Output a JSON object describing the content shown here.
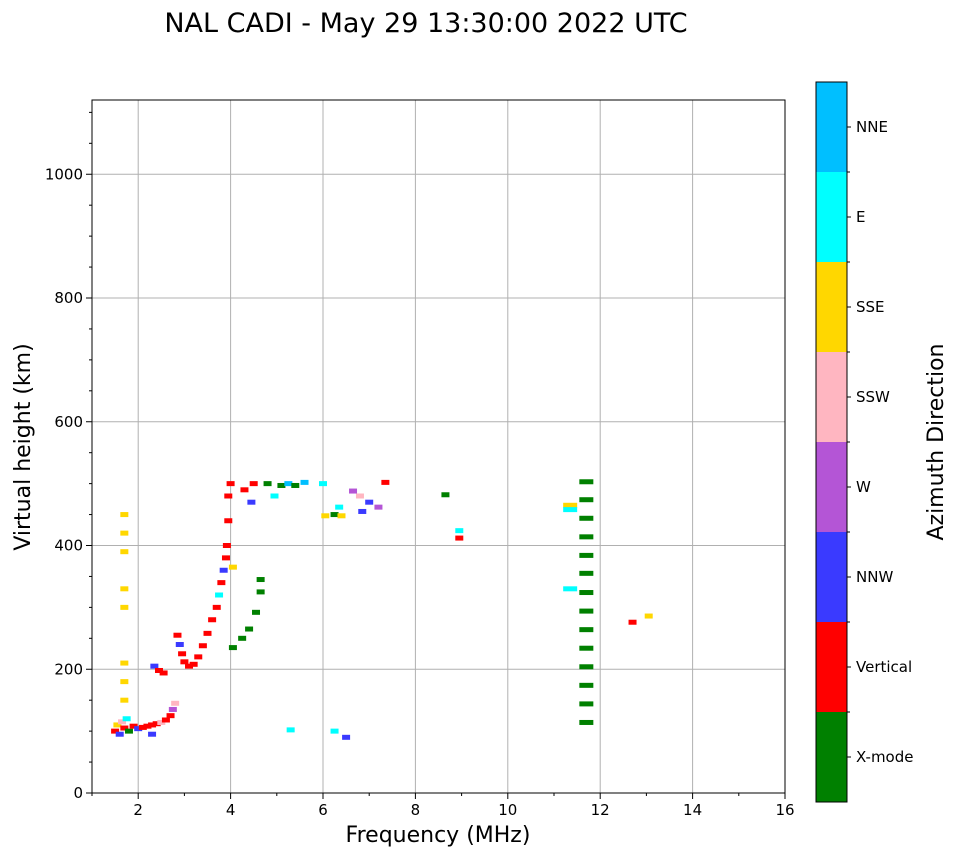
{
  "chart_data": {
    "type": "scatter",
    "title": "NAL CADI - May 29 13:30:00 2022 UTC",
    "xlabel": "Frequency (MHz)",
    "ylabel": "Virtual height (km)",
    "xlim": [
      1,
      16
    ],
    "ylim": [
      0,
      1120
    ],
    "xticks": [
      "2",
      "4",
      "6",
      "8",
      "10",
      "12",
      "14",
      "16"
    ],
    "yticks": [
      "0",
      "200",
      "400",
      "600",
      "800",
      "1000"
    ],
    "grid": true,
    "colorbar": {
      "label": "Azimuth Direction",
      "entries": [
        {
          "name": "X-mode",
          "color": "#008000"
        },
        {
          "name": "Vertical",
          "color": "#ff0000"
        },
        {
          "name": "NNW",
          "color": "#3a3aff"
        },
        {
          "name": "W",
          "color": "#b455d6"
        },
        {
          "name": "SSW",
          "color": "#ffb6c1"
        },
        {
          "name": "SSE",
          "color": "#ffd700"
        },
        {
          "name": "E",
          "color": "#00ffff"
        },
        {
          "name": "NNE",
          "color": "#00bfff"
        }
      ]
    },
    "points": [
      {
        "f": 1.5,
        "h": 100,
        "c": "Vertical"
      },
      {
        "f": 1.55,
        "h": 110,
        "c": "SSE"
      },
      {
        "f": 1.6,
        "h": 95,
        "c": "NNW"
      },
      {
        "f": 1.65,
        "h": 115,
        "c": "SSW"
      },
      {
        "f": 1.7,
        "h": 105,
        "c": "Vertical"
      },
      {
        "f": 1.75,
        "h": 120,
        "c": "E"
      },
      {
        "f": 1.8,
        "h": 100,
        "c": "X-mode"
      },
      {
        "f": 1.9,
        "h": 108,
        "c": "Vertical"
      },
      {
        "f": 2.0,
        "h": 104,
        "c": "NNW"
      },
      {
        "f": 2.1,
        "h": 106,
        "c": "Vertical"
      },
      {
        "f": 2.2,
        "h": 108,
        "c": "Vertical"
      },
      {
        "f": 2.3,
        "h": 110,
        "c": "Vertical"
      },
      {
        "f": 2.4,
        "h": 112,
        "c": "Vertical"
      },
      {
        "f": 2.5,
        "h": 114,
        "c": "SSW"
      },
      {
        "f": 2.6,
        "h": 118,
        "c": "Vertical"
      },
      {
        "f": 2.7,
        "h": 125,
        "c": "Vertical"
      },
      {
        "f": 2.75,
        "h": 135,
        "c": "W"
      },
      {
        "f": 2.8,
        "h": 145,
        "c": "SSW"
      },
      {
        "f": 2.3,
        "h": 95,
        "c": "NNW"
      },
      {
        "f": 1.7,
        "h": 150,
        "c": "SSE"
      },
      {
        "f": 1.7,
        "h": 180,
        "c": "SSE"
      },
      {
        "f": 1.7,
        "h": 210,
        "c": "SSE"
      },
      {
        "f": 1.7,
        "h": 300,
        "c": "SSE"
      },
      {
        "f": 1.7,
        "h": 330,
        "c": "SSE"
      },
      {
        "f": 1.7,
        "h": 390,
        "c": "SSE"
      },
      {
        "f": 1.7,
        "h": 420,
        "c": "SSE"
      },
      {
        "f": 1.7,
        "h": 450,
        "c": "SSE"
      },
      {
        "f": 2.35,
        "h": 205,
        "c": "NNW"
      },
      {
        "f": 2.45,
        "h": 198,
        "c": "Vertical"
      },
      {
        "f": 2.55,
        "h": 194,
        "c": "Vertical"
      },
      {
        "f": 2.85,
        "h": 255,
        "c": "Vertical"
      },
      {
        "f": 2.9,
        "h": 240,
        "c": "NNW"
      },
      {
        "f": 2.95,
        "h": 225,
        "c": "Vertical"
      },
      {
        "f": 3.0,
        "h": 212,
        "c": "Vertical"
      },
      {
        "f": 3.1,
        "h": 205,
        "c": "Vertical"
      },
      {
        "f": 3.2,
        "h": 208,
        "c": "Vertical"
      },
      {
        "f": 3.3,
        "h": 220,
        "c": "Vertical"
      },
      {
        "f": 3.4,
        "h": 238,
        "c": "Vertical"
      },
      {
        "f": 3.5,
        "h": 258,
        "c": "Vertical"
      },
      {
        "f": 3.6,
        "h": 280,
        "c": "Vertical"
      },
      {
        "f": 3.7,
        "h": 300,
        "c": "Vertical"
      },
      {
        "f": 3.75,
        "h": 320,
        "c": "E"
      },
      {
        "f": 3.8,
        "h": 340,
        "c": "Vertical"
      },
      {
        "f": 3.85,
        "h": 360,
        "c": "NNW"
      },
      {
        "f": 3.9,
        "h": 380,
        "c": "Vertical"
      },
      {
        "f": 3.92,
        "h": 400,
        "c": "Vertical"
      },
      {
        "f": 3.95,
        "h": 440,
        "c": "Vertical"
      },
      {
        "f": 3.95,
        "h": 480,
        "c": "Vertical"
      },
      {
        "f": 4.0,
        "h": 500,
        "c": "Vertical"
      },
      {
        "f": 4.05,
        "h": 365,
        "c": "SSE"
      },
      {
        "f": 4.05,
        "h": 235,
        "c": "X-mode"
      },
      {
        "f": 4.25,
        "h": 250,
        "c": "X-mode"
      },
      {
        "f": 4.4,
        "h": 265,
        "c": "X-mode"
      },
      {
        "f": 4.55,
        "h": 292,
        "c": "X-mode"
      },
      {
        "f": 4.65,
        "h": 325,
        "c": "X-mode"
      },
      {
        "f": 4.65,
        "h": 345,
        "c": "X-mode"
      },
      {
        "f": 4.3,
        "h": 490,
        "c": "Vertical"
      },
      {
        "f": 4.5,
        "h": 500,
        "c": "Vertical"
      },
      {
        "f": 4.45,
        "h": 470,
        "c": "NNW"
      },
      {
        "f": 4.8,
        "h": 500,
        "c": "X-mode"
      },
      {
        "f": 4.95,
        "h": 480,
        "c": "E"
      },
      {
        "f": 5.1,
        "h": 497,
        "c": "X-mode"
      },
      {
        "f": 5.25,
        "h": 500,
        "c": "NNE"
      },
      {
        "f": 5.4,
        "h": 497,
        "c": "X-mode"
      },
      {
        "f": 5.6,
        "h": 502,
        "c": "NNE"
      },
      {
        "f": 6.0,
        "h": 500,
        "c": "E"
      },
      {
        "f": 6.05,
        "h": 448,
        "c": "SSE"
      },
      {
        "f": 6.25,
        "h": 450,
        "c": "X-mode"
      },
      {
        "f": 6.4,
        "h": 448,
        "c": "SSE"
      },
      {
        "f": 6.35,
        "h": 462,
        "c": "E"
      },
      {
        "f": 6.65,
        "h": 488,
        "c": "W"
      },
      {
        "f": 6.8,
        "h": 480,
        "c": "SSW"
      },
      {
        "f": 6.85,
        "h": 455,
        "c": "NNW"
      },
      {
        "f": 7.0,
        "h": 470,
        "c": "NNW"
      },
      {
        "f": 7.2,
        "h": 462,
        "c": "W"
      },
      {
        "f": 7.35,
        "h": 502,
        "c": "Vertical"
      },
      {
        "f": 8.65,
        "h": 482,
        "c": "X-mode"
      },
      {
        "f": 8.95,
        "h": 424,
        "c": "E"
      },
      {
        "f": 8.95,
        "h": 412,
        "c": "Vertical"
      },
      {
        "f": 11.35,
        "h": 465,
        "c": "SSE"
      },
      {
        "f": 11.35,
        "h": 458,
        "c": "E"
      },
      {
        "f": 11.35,
        "h": 330,
        "c": "E"
      },
      {
        "f": 11.7,
        "h": 503,
        "c": "X-mode"
      },
      {
        "f": 11.7,
        "h": 474,
        "c": "X-mode"
      },
      {
        "f": 11.7,
        "h": 444,
        "c": "X-mode"
      },
      {
        "f": 11.7,
        "h": 414,
        "c": "X-mode"
      },
      {
        "f": 11.7,
        "h": 384,
        "c": "X-mode"
      },
      {
        "f": 11.7,
        "h": 355,
        "c": "X-mode"
      },
      {
        "f": 11.7,
        "h": 324,
        "c": "X-mode"
      },
      {
        "f": 11.7,
        "h": 294,
        "c": "X-mode"
      },
      {
        "f": 11.7,
        "h": 264,
        "c": "X-mode"
      },
      {
        "f": 11.7,
        "h": 234,
        "c": "X-mode"
      },
      {
        "f": 11.7,
        "h": 204,
        "c": "X-mode"
      },
      {
        "f": 11.7,
        "h": 174,
        "c": "X-mode"
      },
      {
        "f": 11.7,
        "h": 144,
        "c": "X-mode"
      },
      {
        "f": 11.7,
        "h": 114,
        "c": "X-mode"
      },
      {
        "f": 12.7,
        "h": 276,
        "c": "Vertical"
      },
      {
        "f": 13.05,
        "h": 286,
        "c": "SSE"
      },
      {
        "f": 5.3,
        "h": 102,
        "c": "E"
      },
      {
        "f": 6.25,
        "h": 100,
        "c": "E"
      },
      {
        "f": 6.5,
        "h": 90,
        "c": "NNW"
      }
    ]
  }
}
